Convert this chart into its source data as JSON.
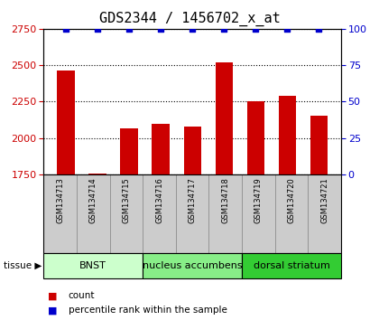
{
  "title": "GDS2344 / 1456702_x_at",
  "samples": [
    "GSM134713",
    "GSM134714",
    "GSM134715",
    "GSM134716",
    "GSM134717",
    "GSM134718",
    "GSM134719",
    "GSM134720",
    "GSM134721"
  ],
  "counts": [
    2462,
    1755,
    2065,
    2100,
    2080,
    2520,
    2250,
    2290,
    2155
  ],
  "percentiles": [
    100,
    100,
    100,
    100,
    100,
    100,
    100,
    100,
    100
  ],
  "ylim_left": [
    1750,
    2750
  ],
  "ylim_right": [
    0,
    100
  ],
  "yticks_left": [
    1750,
    2000,
    2250,
    2500,
    2750
  ],
  "yticks_right": [
    0,
    25,
    50,
    75,
    100
  ],
  "bar_color": "#cc0000",
  "dot_color": "#0000cc",
  "tissue_groups": [
    {
      "label": "BNST",
      "start": 0,
      "end": 3,
      "color": "#ccffcc"
    },
    {
      "label": "nucleus accumbens",
      "start": 3,
      "end": 6,
      "color": "#88ee88"
    },
    {
      "label": "dorsal striatum",
      "start": 6,
      "end": 9,
      "color": "#33cc33"
    }
  ],
  "grid_color": "#000000",
  "sample_bg_color": "#cccccc",
  "title_fontsize": 11,
  "tick_fontsize": 8,
  "sample_fontsize": 6,
  "tissue_fontsize": 8,
  "legend_fontsize": 7.5
}
